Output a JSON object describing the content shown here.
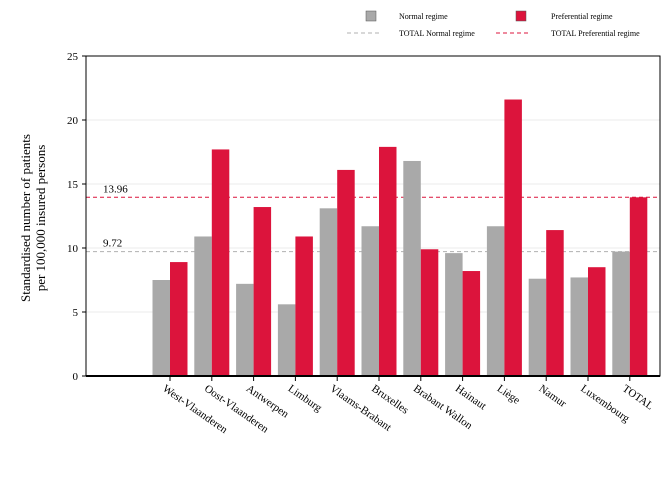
{
  "chart_data": {
    "type": "bar",
    "ylabel": [
      "Standardised number of patients",
      "per 100,000 insured persons"
    ],
    "ylim": [
      0,
      25
    ],
    "yticks": [
      0,
      5,
      10,
      15,
      20,
      25
    ],
    "grid": true,
    "legend_position": "top-right",
    "categories": [
      "West-Vlaanderen",
      "Oost-Vlaanderen",
      "Antwerpen",
      "Limburg",
      "Vlaams-Brabant",
      "Bruxelles",
      "Brabant Wallon",
      "Hainaut",
      "Liège",
      "Namur",
      "Luxembourg",
      "TOTAL"
    ],
    "series": [
      {
        "name": "Normal regime",
        "color": "#a9a9a9",
        "values": [
          7.5,
          10.9,
          7.2,
          5.6,
          13.1,
          11.7,
          16.8,
          9.6,
          11.7,
          7.6,
          7.7,
          9.72
        ]
      },
      {
        "name": "Preferential regime",
        "color": "#dc143c",
        "values": [
          8.9,
          17.7,
          13.2,
          10.9,
          16.1,
          17.9,
          9.9,
          8.2,
          21.6,
          11.4,
          8.5,
          13.96
        ]
      }
    ],
    "reference_lines": [
      {
        "name": "TOTAL Normal regime",
        "value": 9.72,
        "label": "9.72",
        "color": "#b0b0b0"
      },
      {
        "name": "TOTAL Preferential regime",
        "value": 13.96,
        "label": "13.96",
        "color": "#dc143c"
      }
    ]
  }
}
